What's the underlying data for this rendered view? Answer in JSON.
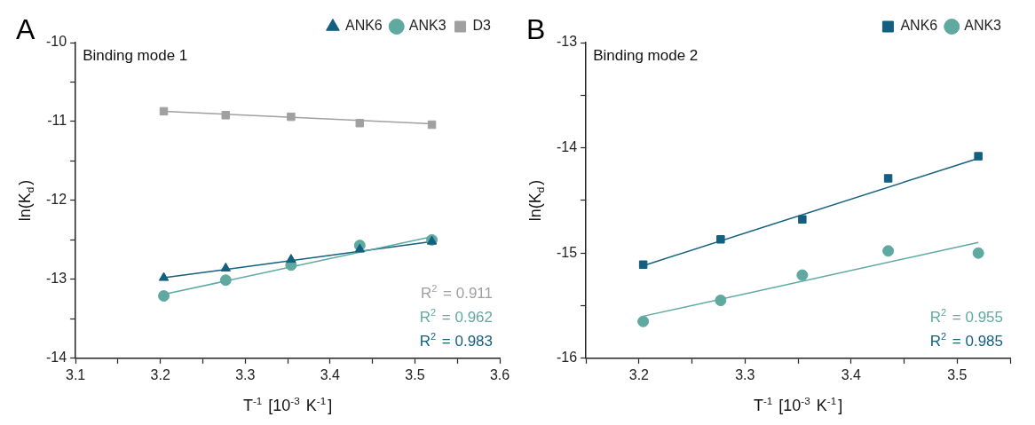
{
  "chart_data": [
    {
      "type": "scatter",
      "title": "A",
      "xlabel": "T$^{-1}$ [10$^{-3}$ K$^{-1}$]",
      "ylabel": "ln(K$_{d}$)",
      "xlim": [
        3.1,
        3.6
      ],
      "xticks": [
        3.1,
        {
          "value": 3.15,
          "label": null
        },
        3.2,
        {
          "value": 3.25,
          "label": null
        },
        3.3,
        {
          "value": 3.35,
          "label": null
        },
        3.4,
        {
          "value": 3.45,
          "label": null
        },
        3.5,
        {
          "value": 3.55,
          "label": null
        },
        3.6
      ],
      "ylim": [
        -14,
        -10
      ],
      "yticks": [
        -14,
        {
          "value": -13.5,
          "label": null
        },
        -13,
        {
          "value": -12.5,
          "label": null
        },
        -12,
        {
          "value": -11.5,
          "label": null
        },
        -11,
        {
          "value": -10.5,
          "label": null
        },
        -10
      ],
      "grid": false,
      "legend": "top right",
      "annotations": [
        "Binding mode 1",
        "R$^{2}$ = 0.911",
        "R$^{2}$ = 0.962",
        "R$^{2}$ = 0.983"
      ],
      "series": [
        {
          "name": "D3",
          "marker": "square",
          "color": "#a0a0a0",
          "x": [
            3.204,
            3.277,
            3.354,
            3.435,
            3.52
          ],
          "values": [
            -10.87,
            -10.92,
            -10.94,
            -11.02,
            -11.04
          ]
        },
        {
          "name": "ANK3",
          "marker": "circle",
          "color": "#5fa9a1",
          "x": [
            3.204,
            3.277,
            3.354,
            3.435,
            3.52
          ],
          "values": [
            -13.21,
            -13.01,
            -12.82,
            -12.57,
            -12.5
          ]
        },
        {
          "name": "ANK6",
          "marker": "triangle",
          "color": "#135f7f",
          "x": [
            3.204,
            3.277,
            3.354,
            3.435,
            3.52
          ],
          "values": [
            -12.98,
            -12.86,
            -12.75,
            -12.62,
            -12.52
          ]
        },
        {
          "type": "line",
          "marker": "none",
          "color": "#a0a0a0",
          "x": [
            3.204,
            3.52
          ],
          "values": [
            -10.87,
            -11.03
          ]
        },
        {
          "type": "line",
          "marker": "none",
          "color": "#5fa9a1",
          "x": [
            3.204,
            3.52
          ],
          "values": [
            -13.19,
            -12.46
          ]
        },
        {
          "type": "line",
          "marker": "none",
          "color": "#135f7f",
          "x": [
            3.204,
            3.52
          ],
          "values": [
            -12.98,
            -12.52
          ]
        }
      ]
    },
    {
      "type": "scatter",
      "title": "B",
      "xlabel": "T$^{-1}$ [10$^{-3}$ K$^{-1}$]",
      "ylabel": "ln(K$_{d}$)",
      "xlim": [
        3.15,
        3.55
      ],
      "xticks": [
        {
          "value": 3.15,
          "label": null
        },
        3.2,
        {
          "value": 3.25,
          "label": null
        },
        3.3,
        {
          "value": 3.35,
          "label": null
        },
        3.4,
        {
          "value": 3.45,
          "label": null
        },
        3.5,
        {
          "value": 3.55,
          "label": null
        }
      ],
      "ylim": [
        -16,
        -13
      ],
      "yticks": [
        -16,
        {
          "value": -15.5,
          "label": null
        },
        -15,
        {
          "value": -14.5,
          "label": null
        },
        -14,
        {
          "value": -13.5,
          "label": null
        },
        -13
      ],
      "grid": false,
      "legend": "top right",
      "annotations": [
        "Binding mode 2",
        "R$^{2}$ = 0.955",
        "R$^{2}$ = 0.985"
      ],
      "series": [
        {
          "name": "ANK3",
          "marker": "circle",
          "color": "#5fa9a1",
          "x": [
            3.204,
            3.277,
            3.354,
            3.435,
            3.52
          ],
          "values": [
            -15.65,
            -15.45,
            -15.21,
            -14.98,
            -15.0
          ]
        },
        {
          "name": "ANK6",
          "marker": "square",
          "color": "#135f7f",
          "x": [
            3.204,
            3.277,
            3.354,
            3.435,
            3.52
          ],
          "values": [
            -15.11,
            -14.87,
            -14.68,
            -14.29,
            -14.08
          ]
        },
        {
          "type": "line",
          "marker": "none",
          "color": "#5fa9a1",
          "x": [
            3.204,
            3.52
          ],
          "values": [
            -15.6,
            -14.9
          ]
        },
        {
          "type": "line",
          "marker": "none",
          "color": "#135f7f",
          "x": [
            3.204,
            3.52
          ],
          "values": [
            -15.12,
            -14.1
          ]
        }
      ]
    }
  ]
}
